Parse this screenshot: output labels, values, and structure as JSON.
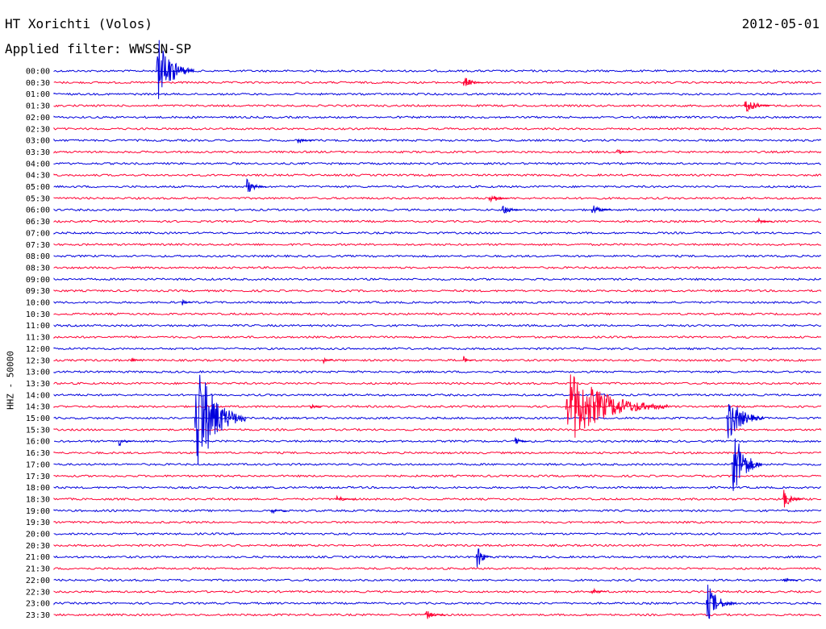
{
  "header": {
    "station": "HT Xorichti (Volos)",
    "filter": "Applied filter: WWSSN-SP",
    "date": "2012-05-01",
    "channel_label": "HHZ - 50000"
  },
  "colors": {
    "even_row": "#0000dd",
    "odd_row": "#ff0033"
  },
  "chart_data": {
    "type": "seismogram",
    "title": "HT Xorichti (Volos)",
    "subtitle": "Applied filter: WWSSN-SP",
    "ylabel": "HHZ - 50000",
    "row_interval_minutes": 30,
    "tick_labels": [
      "00:00",
      "00:30",
      "01:00",
      "01:30",
      "02:00",
      "02:30",
      "03:00",
      "03:30",
      "04:00",
      "04:30",
      "05:00",
      "05:30",
      "06:00",
      "06:30",
      "07:00",
      "07:30",
      "08:00",
      "08:30",
      "09:00",
      "09:30",
      "10:00",
      "10:30",
      "11:00",
      "11:30",
      "12:00",
      "12:30",
      "13:00",
      "13:30",
      "14:00",
      "14:30",
      "15:00",
      "15:30",
      "16:00",
      "16:30",
      "17:00",
      "17:30",
      "18:00",
      "18:30",
      "19:00",
      "19:30",
      "20:00",
      "20:30",
      "21:00",
      "21:30",
      "22:00",
      "22:30",
      "23:00",
      "23:30"
    ],
    "events": [
      {
        "row": "00:00",
        "minute": 4.0,
        "amplitude": 50,
        "duration": 1.5
      },
      {
        "row": "00:30",
        "minute": 16.0,
        "amplitude": 10,
        "duration": 0.8
      },
      {
        "row": "01:30",
        "minute": 27.0,
        "amplitude": 14,
        "duration": 1.0
      },
      {
        "row": "03:00",
        "minute": 9.5,
        "amplitude": 7,
        "duration": 0.7
      },
      {
        "row": "03:30",
        "minute": 22.0,
        "amplitude": 5,
        "duration": 0.6
      },
      {
        "row": "05:00",
        "minute": 7.5,
        "amplitude": 12,
        "duration": 0.8
      },
      {
        "row": "05:30",
        "minute": 17.0,
        "amplitude": 10,
        "duration": 0.8
      },
      {
        "row": "06:00",
        "minute": 17.5,
        "amplitude": 9,
        "duration": 0.8
      },
      {
        "row": "06:00",
        "minute": 21.0,
        "amplitude": 9,
        "duration": 0.8
      },
      {
        "row": "06:30",
        "minute": 27.5,
        "amplitude": 6,
        "duration": 0.6
      },
      {
        "row": "10:00",
        "minute": 5.0,
        "amplitude": 5,
        "duration": 0.4
      },
      {
        "row": "12:30",
        "minute": 3.0,
        "amplitude": 6,
        "duration": 0.4
      },
      {
        "row": "12:30",
        "minute": 10.5,
        "amplitude": 5,
        "duration": 0.4
      },
      {
        "row": "12:30",
        "minute": 16.0,
        "amplitude": 6,
        "duration": 0.4
      },
      {
        "row": "14:30",
        "minute": 10.0,
        "amplitude": 5,
        "duration": 0.5
      },
      {
        "row": "15:00",
        "minute": 5.5,
        "amplitude": 90,
        "duration": 2.0
      },
      {
        "row": "14:30",
        "minute": 20.0,
        "amplitude": 55,
        "duration": 4.0
      },
      {
        "row": "15:00",
        "minute": 26.3,
        "amplitude": 35,
        "duration": 1.5
      },
      {
        "row": "16:00",
        "minute": 2.5,
        "amplitude": 8,
        "duration": 0.6
      },
      {
        "row": "16:00",
        "minute": 18.0,
        "amplitude": 6,
        "duration": 0.6
      },
      {
        "row": "17:00",
        "minute": 26.5,
        "amplitude": 60,
        "duration": 1.2
      },
      {
        "row": "18:30",
        "minute": 11.0,
        "amplitude": 6,
        "duration": 0.8
      },
      {
        "row": "18:30",
        "minute": 28.5,
        "amplitude": 15,
        "duration": 0.8
      },
      {
        "row": "19:00",
        "minute": 8.5,
        "amplitude": 5,
        "duration": 0.6
      },
      {
        "row": "21:00",
        "minute": 16.5,
        "amplitude": 22,
        "duration": 0.6
      },
      {
        "row": "22:00",
        "minute": 28.5,
        "amplitude": 5,
        "duration": 0.6
      },
      {
        "row": "22:30",
        "minute": 21.0,
        "amplitude": 7,
        "duration": 0.6
      },
      {
        "row": "23:00",
        "minute": 25.5,
        "amplitude": 28,
        "duration": 1.2
      },
      {
        "row": "23:30",
        "minute": 14.5,
        "amplitude": 8,
        "duration": 0.8
      }
    ]
  }
}
